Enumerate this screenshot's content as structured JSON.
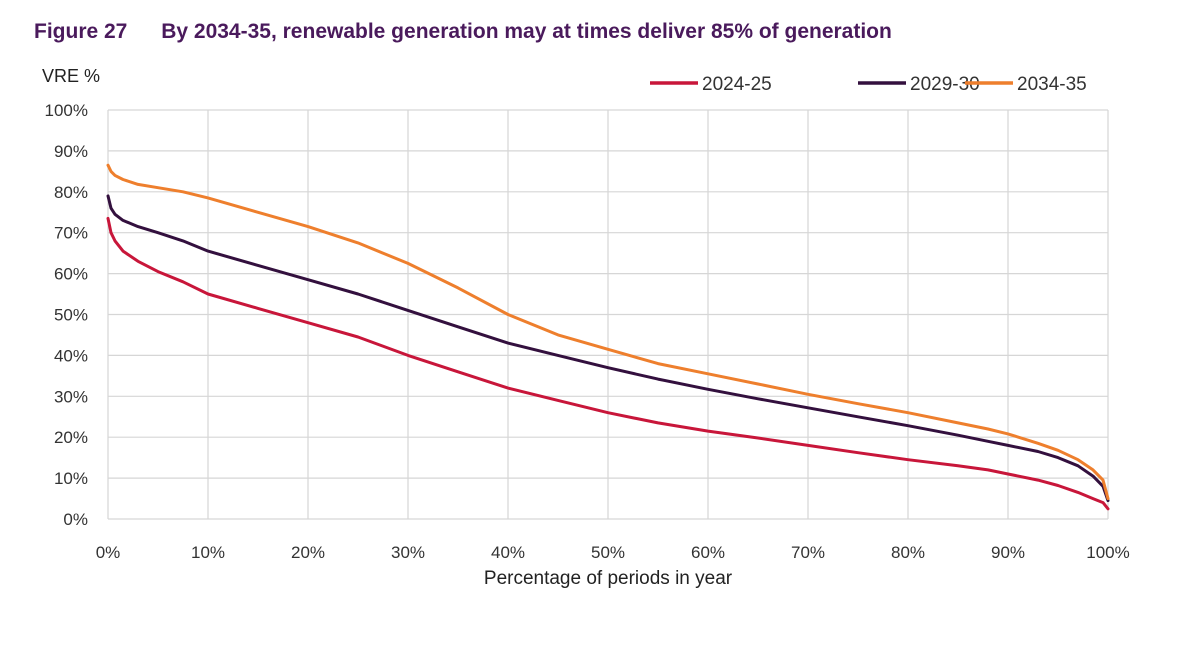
{
  "figure": {
    "number": "Figure 27",
    "title": "By 2034-35, renewable generation may at times deliver 85% of generation"
  },
  "chart_data": {
    "type": "line",
    "ylabel": "VRE %",
    "xlabel": "Percentage of periods in year",
    "xlim": [
      0,
      100
    ],
    "ylim": [
      0,
      100
    ],
    "x_ticks": [
      "0%",
      "10%",
      "20%",
      "30%",
      "40%",
      "50%",
      "60%",
      "70%",
      "80%",
      "90%",
      "100%"
    ],
    "y_ticks": [
      "0%",
      "10%",
      "20%",
      "30%",
      "40%",
      "50%",
      "60%",
      "70%",
      "80%",
      "90%",
      "100%"
    ],
    "grid": true,
    "legend_position": "top-right",
    "series": [
      {
        "name": "2024-25",
        "color": "#c8163a",
        "points": [
          [
            0,
            73.5
          ],
          [
            0.3,
            70
          ],
          [
            0.7,
            68
          ],
          [
            1.5,
            65.5
          ],
          [
            3,
            63
          ],
          [
            5,
            60.5
          ],
          [
            7.5,
            58
          ],
          [
            10,
            55
          ],
          [
            15,
            51.5
          ],
          [
            20,
            48
          ],
          [
            25,
            44.5
          ],
          [
            30,
            40
          ],
          [
            35,
            36
          ],
          [
            40,
            32
          ],
          [
            45,
            29
          ],
          [
            50,
            26
          ],
          [
            55,
            23.5
          ],
          [
            60,
            21.5
          ],
          [
            65,
            19.8
          ],
          [
            70,
            18
          ],
          [
            75,
            16.2
          ],
          [
            80,
            14.5
          ],
          [
            85,
            13
          ],
          [
            88,
            12
          ],
          [
            90,
            11
          ],
          [
            93,
            9.5
          ],
          [
            95,
            8.2
          ],
          [
            97,
            6.5
          ],
          [
            98.5,
            5
          ],
          [
            99.5,
            4
          ],
          [
            100,
            2.5
          ]
        ]
      },
      {
        "name": "2029-30",
        "color": "#33103e",
        "points": [
          [
            0,
            79
          ],
          [
            0.3,
            76
          ],
          [
            0.7,
            74.5
          ],
          [
            1.5,
            73
          ],
          [
            3,
            71.5
          ],
          [
            5,
            70
          ],
          [
            7.5,
            68
          ],
          [
            10,
            65.5
          ],
          [
            15,
            62
          ],
          [
            20,
            58.5
          ],
          [
            25,
            55
          ],
          [
            30,
            51
          ],
          [
            35,
            47
          ],
          [
            40,
            43
          ],
          [
            45,
            40
          ],
          [
            50,
            37
          ],
          [
            55,
            34.2
          ],
          [
            60,
            31.7
          ],
          [
            65,
            29.4
          ],
          [
            70,
            27.2
          ],
          [
            75,
            25
          ],
          [
            80,
            22.8
          ],
          [
            85,
            20.5
          ],
          [
            88,
            19
          ],
          [
            90,
            18
          ],
          [
            93,
            16.5
          ],
          [
            95,
            15
          ],
          [
            97,
            13
          ],
          [
            98.5,
            10.5
          ],
          [
            99.5,
            8
          ],
          [
            100,
            4.5
          ]
        ]
      },
      {
        "name": "2034-35",
        "color": "#ee7f2d",
        "points": [
          [
            0,
            86.5
          ],
          [
            0.3,
            85
          ],
          [
            0.7,
            84
          ],
          [
            1.5,
            83
          ],
          [
            3,
            81.8
          ],
          [
            5,
            81
          ],
          [
            7.5,
            80
          ],
          [
            10,
            78.5
          ],
          [
            15,
            75
          ],
          [
            20,
            71.5
          ],
          [
            25,
            67.5
          ],
          [
            30,
            62.5
          ],
          [
            35,
            56.5
          ],
          [
            40,
            50
          ],
          [
            45,
            45
          ],
          [
            50,
            41.5
          ],
          [
            55,
            38
          ],
          [
            60,
            35.5
          ],
          [
            65,
            33
          ],
          [
            70,
            30.5
          ],
          [
            75,
            28.2
          ],
          [
            80,
            26
          ],
          [
            85,
            23.5
          ],
          [
            88,
            22
          ],
          [
            90,
            20.8
          ],
          [
            93,
            18.5
          ],
          [
            95,
            16.8
          ],
          [
            97,
            14.5
          ],
          [
            98.5,
            12
          ],
          [
            99.5,
            9.5
          ],
          [
            100,
            5
          ]
        ]
      }
    ]
  }
}
